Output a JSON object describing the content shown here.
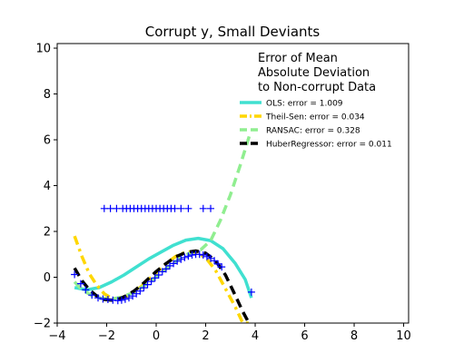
{
  "chart_data": {
    "type": "line",
    "title": "Corrupt y, Small Deviants",
    "xlabel": "",
    "ylabel": "",
    "xlim": [
      -4,
      10.2
    ],
    "ylim": [
      -2,
      10.2
    ],
    "xticks": [
      -4,
      -2,
      0,
      2,
      4,
      6,
      8,
      10
    ],
    "yticks": [
      -2,
      0,
      2,
      4,
      6,
      8,
      10
    ],
    "grid": false,
    "legend": {
      "title": "Error of Mean\nAbsolute Deviation\nto Non-corrupt Data",
      "placement": "top-right"
    },
    "scatter": {
      "marker": "+",
      "color": "#0000ff",
      "main_points": [
        [
          -3.3,
          0.12
        ],
        [
          -3.05,
          -0.28
        ],
        [
          -2.85,
          -0.55
        ],
        [
          -2.6,
          -0.78
        ],
        [
          -2.35,
          -0.9
        ],
        [
          -2.15,
          -0.95
        ],
        [
          -1.95,
          -0.97
        ],
        [
          -1.75,
          -1.0
        ],
        [
          -1.55,
          -1.02
        ],
        [
          -1.4,
          -1.0
        ],
        [
          -1.25,
          -0.96
        ],
        [
          -1.1,
          -0.9
        ],
        [
          -0.95,
          -0.82
        ],
        [
          -0.8,
          -0.72
        ],
        [
          -0.65,
          -0.6
        ],
        [
          -0.5,
          -0.46
        ],
        [
          -0.35,
          -0.32
        ],
        [
          -0.2,
          -0.18
        ],
        [
          -0.05,
          -0.03
        ],
        [
          0.1,
          0.1
        ],
        [
          0.25,
          0.24
        ],
        [
          0.4,
          0.36
        ],
        [
          0.55,
          0.5
        ],
        [
          0.7,
          0.6
        ],
        [
          0.85,
          0.7
        ],
        [
          1.0,
          0.78
        ],
        [
          1.15,
          0.86
        ],
        [
          1.3,
          0.92
        ],
        [
          1.45,
          0.97
        ],
        [
          1.6,
          1.0
        ],
        [
          1.75,
          1.0
        ],
        [
          1.9,
          0.97
        ],
        [
          2.05,
          0.9
        ],
        [
          2.2,
          0.82
        ],
        [
          2.35,
          0.72
        ],
        [
          2.5,
          0.58
        ],
        [
          2.65,
          0.45
        ],
        [
          3.85,
          -0.65
        ]
      ],
      "outlier_points": [
        [
          -2.1,
          3.0
        ],
        [
          -1.85,
          3.0
        ],
        [
          -1.6,
          3.0
        ],
        [
          -1.35,
          3.0
        ],
        [
          -1.2,
          3.0
        ],
        [
          -1.05,
          3.0
        ],
        [
          -0.9,
          3.0
        ],
        [
          -0.75,
          3.0
        ],
        [
          -0.6,
          3.0
        ],
        [
          -0.45,
          3.0
        ],
        [
          -0.3,
          3.0
        ],
        [
          -0.15,
          3.0
        ],
        [
          0.0,
          3.0
        ],
        [
          0.15,
          3.0
        ],
        [
          0.3,
          3.0
        ],
        [
          0.45,
          3.0
        ],
        [
          0.6,
          3.0
        ],
        [
          0.75,
          3.0
        ],
        [
          1.0,
          3.0
        ],
        [
          1.3,
          3.0
        ],
        [
          1.9,
          3.0
        ],
        [
          2.2,
          3.0
        ]
      ]
    },
    "series": [
      {
        "name": "OLS: error = 1.009",
        "color": "#40e0d0",
        "dash": "solid",
        "x": [
          -3.3,
          -2.8,
          -2.3,
          -1.8,
          -1.3,
          -0.8,
          -0.3,
          0.2,
          0.7,
          1.2,
          1.7,
          2.2,
          2.7,
          3.2,
          3.6,
          3.85
        ],
        "y": [
          -0.45,
          -0.55,
          -0.45,
          -0.2,
          0.1,
          0.45,
          0.8,
          1.1,
          1.4,
          1.62,
          1.7,
          1.6,
          1.25,
          0.6,
          -0.1,
          -0.9
        ]
      },
      {
        "name": "Theil-Sen: error = 0.034",
        "color": "#ffd700",
        "dash": "dashdot",
        "x": [
          -3.3,
          -3.0,
          -2.7,
          -2.4,
          -2.1,
          -1.8,
          -1.5,
          -1.2,
          -0.9,
          -0.6,
          -0.3,
          0.0,
          0.4,
          0.8,
          1.2,
          1.6,
          2.0,
          2.4,
          2.8,
          3.2,
          3.5,
          3.8
        ],
        "y": [
          1.8,
          0.9,
          0.15,
          -0.35,
          -0.72,
          -0.92,
          -0.95,
          -0.85,
          -0.65,
          -0.4,
          -0.1,
          0.2,
          0.6,
          0.92,
          1.1,
          1.1,
          0.85,
          0.3,
          -0.5,
          -1.3,
          -2.0,
          -2.0
        ]
      },
      {
        "name": "RANSAC: error = 0.328",
        "color": "#90ee90",
        "dash": "dash",
        "x": [
          -3.3,
          -3.0,
          -2.6,
          -2.2,
          -1.8,
          -1.4,
          -1.0,
          -0.6,
          -0.2,
          0.2,
          0.6,
          1.0,
          1.4,
          1.8,
          2.2,
          2.6,
          3.0,
          3.4,
          3.8
        ],
        "y": [
          -0.2,
          -0.55,
          -0.8,
          -0.93,
          -0.95,
          -0.87,
          -0.7,
          -0.45,
          -0.15,
          0.2,
          0.55,
          0.85,
          1.08,
          1.2,
          1.6,
          2.5,
          3.6,
          4.9,
          6.3
        ]
      },
      {
        "name": "HuberRegressor: error = 0.011",
        "color": "#000000",
        "dash": "dash",
        "x": [
          -3.3,
          -3.0,
          -2.7,
          -2.4,
          -2.1,
          -1.8,
          -1.5,
          -1.2,
          -0.9,
          -0.6,
          -0.3,
          0.0,
          0.4,
          0.8,
          1.2,
          1.6,
          2.0,
          2.4,
          2.8,
          3.2,
          3.5,
          3.75
        ],
        "y": [
          0.4,
          -0.15,
          -0.55,
          -0.82,
          -0.97,
          -1.0,
          -0.95,
          -0.8,
          -0.6,
          -0.35,
          -0.05,
          0.25,
          0.6,
          0.9,
          1.08,
          1.15,
          1.05,
          0.72,
          0.1,
          -0.8,
          -1.5,
          -2.0
        ]
      }
    ]
  }
}
